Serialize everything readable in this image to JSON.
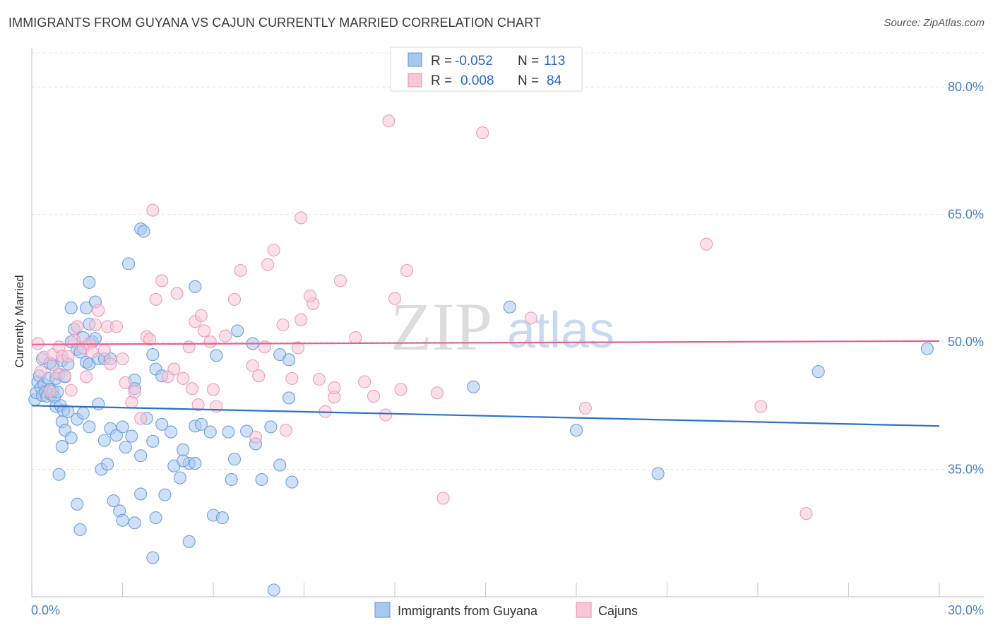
{
  "title": "IMMIGRANTS FROM GUYANA VS CAJUN CURRENTLY MARRIED CORRELATION CHART",
  "source": "Source: ZipAtlas.com",
  "watermark": {
    "part1": "ZIP",
    "part2": "atlas"
  },
  "chart_data": {
    "type": "scatter",
    "title": "IMMIGRANTS FROM GUYANA VS CAJUN CURRENTLY MARRIED CORRELATION CHART",
    "xlabel": "",
    "ylabel": "Currently Married",
    "xlim": [
      0,
      30
    ],
    "ylim": [
      20,
      84
    ],
    "x_tick_labels": [
      {
        "value": 0,
        "label": "0.0%"
      },
      {
        "value": 30,
        "label": "30.0%"
      }
    ],
    "y_tick_labels": [
      {
        "value": 35,
        "label": "35.0%"
      },
      {
        "value": 50,
        "label": "50.0%"
      },
      {
        "value": 65,
        "label": "65.0%"
      },
      {
        "value": 80,
        "label": "80.0%"
      }
    ],
    "legend": [
      {
        "series": "Immigrants from Guyana",
        "r_label": "R =",
        "r_value": "-0.052",
        "n_label": "N =",
        "n_value": "113"
      },
      {
        "series": "Cajuns",
        "r_label": "R =",
        "r_value": "0.008",
        "n_label": "N =",
        "n_value": "84"
      }
    ],
    "series": [
      {
        "name": "Immigrants from Guyana",
        "color": "#6b9fe0",
        "fill": "#a9c8f0",
        "line_color": "#2b6fd1",
        "trend": {
          "x": [
            0,
            30
          ],
          "y": [
            42.5,
            40.1
          ]
        },
        "points": [
          [
            0.1,
            43.2
          ],
          [
            0.15,
            44.0
          ],
          [
            0.2,
            45.3
          ],
          [
            0.25,
            46.0
          ],
          [
            0.3,
            44.6
          ],
          [
            0.35,
            43.7
          ],
          [
            0.4,
            45.0
          ],
          [
            0.45,
            44.1
          ],
          [
            0.5,
            43.6
          ],
          [
            0.55,
            45.7
          ],
          [
            0.6,
            44.4
          ],
          [
            0.65,
            43.8
          ],
          [
            0.7,
            44.2
          ],
          [
            0.75,
            43.5
          ],
          [
            0.8,
            42.4
          ],
          [
            0.85,
            44.1
          ],
          [
            0.9,
            46.2
          ],
          [
            0.35,
            48.0
          ],
          [
            0.6,
            47.5
          ],
          [
            0.7,
            47.3
          ],
          [
            0.8,
            45.7
          ],
          [
            1.0,
            47.8
          ],
          [
            1.1,
            45.9
          ],
          [
            1.2,
            47.4
          ],
          [
            0.95,
            42.5
          ],
          [
            1.05,
            41.9
          ],
          [
            1.3,
            50.0
          ],
          [
            1.4,
            51.5
          ],
          [
            1.5,
            49.1
          ],
          [
            1.6,
            48.8
          ],
          [
            1.7,
            50.5
          ],
          [
            1.8,
            47.6
          ],
          [
            1.9,
            47.4
          ],
          [
            2.0,
            50.0
          ],
          [
            2.1,
            50.4
          ],
          [
            2.2,
            48.0
          ],
          [
            1.3,
            54.0
          ],
          [
            1.8,
            54.0
          ],
          [
            1.9,
            52.1
          ],
          [
            2.1,
            54.7
          ],
          [
            1.9,
            57.0
          ],
          [
            3.2,
            59.2
          ],
          [
            3.6,
            63.3
          ],
          [
            3.7,
            63.0
          ],
          [
            5.4,
            56.5
          ],
          [
            6.8,
            51.3
          ],
          [
            7.3,
            49.8
          ],
          [
            8.2,
            48.5
          ],
          [
            8.5,
            47.9
          ],
          [
            6.1,
            48.4
          ],
          [
            4.0,
            48.5
          ],
          [
            4.1,
            46.8
          ],
          [
            4.3,
            46.0
          ],
          [
            3.4,
            45.5
          ],
          [
            3.4,
            44.5
          ],
          [
            2.4,
            48.0
          ],
          [
            2.6,
            48.0
          ],
          [
            1.0,
            40.6
          ],
          [
            1.1,
            39.6
          ],
          [
            1.2,
            41.8
          ],
          [
            1.3,
            38.7
          ],
          [
            1.5,
            40.9
          ],
          [
            1.7,
            41.6
          ],
          [
            1.9,
            40.0
          ],
          [
            2.2,
            42.7
          ],
          [
            2.4,
            38.4
          ],
          [
            2.6,
            39.8
          ],
          [
            2.8,
            39.0
          ],
          [
            3.0,
            40.0
          ],
          [
            3.1,
            37.6
          ],
          [
            3.3,
            38.9
          ],
          [
            3.6,
            36.6
          ],
          [
            3.8,
            41.0
          ],
          [
            4.0,
            38.3
          ],
          [
            4.3,
            40.3
          ],
          [
            4.6,
            39.4
          ],
          [
            5.0,
            37.3
          ],
          [
            5.2,
            35.7
          ],
          [
            5.4,
            40.1
          ],
          [
            5.6,
            40.3
          ],
          [
            5.9,
            39.4
          ],
          [
            6.5,
            39.4
          ],
          [
            6.7,
            36.2
          ],
          [
            7.1,
            39.5
          ],
          [
            7.4,
            38.0
          ],
          [
            7.9,
            40.0
          ],
          [
            8.2,
            35.5
          ],
          [
            8.5,
            43.4
          ],
          [
            0.9,
            34.4
          ],
          [
            1.0,
            37.7
          ],
          [
            1.5,
            30.9
          ],
          [
            1.6,
            27.9
          ],
          [
            2.3,
            35.0
          ],
          [
            2.5,
            35.6
          ],
          [
            2.7,
            31.3
          ],
          [
            2.9,
            30.1
          ],
          [
            3.0,
            29.0
          ],
          [
            3.4,
            28.7
          ],
          [
            3.6,
            32.1
          ],
          [
            4.0,
            24.6
          ],
          [
            4.1,
            29.3
          ],
          [
            4.4,
            32.0
          ],
          [
            4.7,
            35.4
          ],
          [
            4.9,
            34.0
          ],
          [
            5.0,
            36.0
          ],
          [
            5.2,
            26.5
          ],
          [
            5.4,
            35.7
          ],
          [
            6.0,
            29.6
          ],
          [
            6.3,
            29.3
          ],
          [
            6.6,
            33.8
          ],
          [
            7.6,
            33.8
          ],
          [
            8.0,
            20.8
          ],
          [
            8.6,
            33.5
          ],
          [
            14.6,
            44.7
          ],
          [
            15.8,
            54.1
          ],
          [
            18.0,
            39.6
          ],
          [
            20.7,
            34.5
          ],
          [
            26.0,
            46.5
          ],
          [
            29.6,
            49.2
          ]
        ]
      },
      {
        "name": "Cajuns",
        "color": "#ee9bb8",
        "fill": "#f7c7d7",
        "line_color": "#e8608e",
        "trend": {
          "x": [
            0,
            30
          ],
          "y": [
            49.7,
            50.1
          ]
        },
        "points": [
          [
            0.2,
            49.8
          ],
          [
            0.3,
            46.5
          ],
          [
            0.4,
            48.2
          ],
          [
            0.6,
            44.2
          ],
          [
            0.7,
            48.5
          ],
          [
            0.8,
            46.4
          ],
          [
            0.9,
            49.4
          ],
          [
            1.0,
            48.3
          ],
          [
            1.1,
            46.0
          ],
          [
            1.2,
            48.3
          ],
          [
            1.3,
            44.3
          ],
          [
            1.4,
            50.2
          ],
          [
            1.5,
            51.8
          ],
          [
            1.7,
            49.3
          ],
          [
            1.8,
            45.9
          ],
          [
            1.9,
            49.8
          ],
          [
            2.0,
            48.8
          ],
          [
            2.1,
            52.0
          ],
          [
            2.2,
            53.7
          ],
          [
            2.4,
            49.0
          ],
          [
            2.5,
            51.8
          ],
          [
            2.6,
            47.4
          ],
          [
            2.8,
            51.8
          ],
          [
            3.0,
            48.0
          ],
          [
            3.1,
            45.2
          ],
          [
            3.3,
            42.9
          ],
          [
            3.4,
            44.1
          ],
          [
            3.6,
            41.0
          ],
          [
            3.8,
            50.6
          ],
          [
            3.9,
            50.3
          ],
          [
            4.1,
            55.0
          ],
          [
            4.3,
            57.2
          ],
          [
            4.5,
            45.9
          ],
          [
            4.7,
            46.8
          ],
          [
            4.8,
            55.7
          ],
          [
            5.0,
            45.7
          ],
          [
            5.2,
            49.4
          ],
          [
            5.4,
            52.4
          ],
          [
            5.6,
            53.1
          ],
          [
            5.7,
            51.3
          ],
          [
            5.9,
            50.0
          ],
          [
            6.1,
            42.4
          ],
          [
            6.4,
            50.7
          ],
          [
            6.7,
            55.0
          ],
          [
            6.9,
            58.4
          ],
          [
            7.3,
            47.2
          ],
          [
            7.5,
            46.0
          ],
          [
            7.8,
            59.1
          ],
          [
            8.0,
            60.8
          ],
          [
            8.3,
            52.0
          ],
          [
            8.6,
            45.7
          ],
          [
            8.9,
            52.6
          ],
          [
            9.3,
            54.5
          ],
          [
            9.5,
            45.6
          ],
          [
            9.7,
            41.8
          ],
          [
            10.0,
            43.5
          ],
          [
            10.2,
            57.2
          ],
          [
            10.7,
            50.5
          ],
          [
            11.0,
            45.3
          ],
          [
            11.3,
            43.6
          ],
          [
            11.7,
            41.4
          ],
          [
            12.0,
            55.1
          ],
          [
            12.2,
            44.4
          ],
          [
            12.4,
            58.4
          ],
          [
            13.4,
            44.0
          ],
          [
            13.6,
            31.6
          ],
          [
            4.0,
            65.5
          ],
          [
            8.9,
            64.6
          ],
          [
            11.8,
            76.0
          ],
          [
            14.9,
            74.6
          ],
          [
            7.4,
            38.8
          ],
          [
            8.4,
            39.6
          ],
          [
            7.7,
            49.4
          ],
          [
            8.8,
            49.3
          ],
          [
            9.2,
            55.4
          ],
          [
            6.0,
            44.4
          ],
          [
            5.3,
            44.5
          ],
          [
            5.5,
            42.6
          ],
          [
            16.5,
            52.8
          ],
          [
            18.3,
            42.2
          ],
          [
            22.3,
            61.5
          ],
          [
            24.1,
            42.4
          ],
          [
            25.6,
            29.8
          ],
          [
            10.0,
            44.6
          ]
        ]
      }
    ]
  },
  "bottom_legend": [
    {
      "label": "Immigrants from Guyana"
    },
    {
      "label": "Cajuns"
    }
  ]
}
